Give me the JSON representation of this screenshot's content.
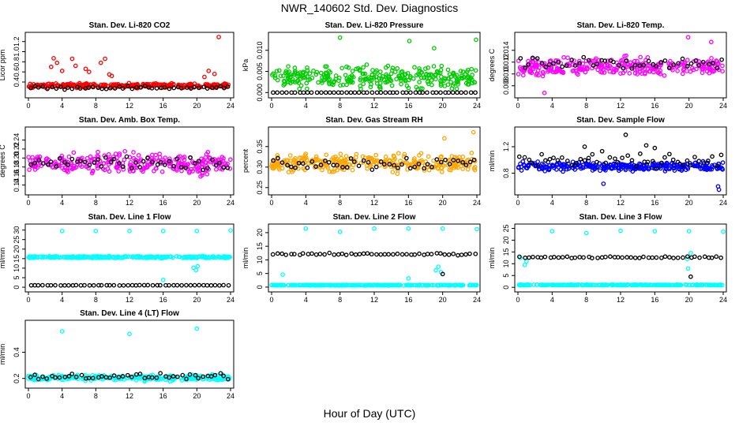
{
  "page": {
    "title": "NWR_140602  Std. Dev. Diagnostics",
    "xlabel": "Hour of Day (UTC)"
  },
  "chart_data": [
    {
      "type": "scatter",
      "title": "Stan. Dev. Li-820 CO2",
      "ylabel": "Licor ppm",
      "xlim": [
        0,
        24
      ],
      "ylim": [
        0.15,
        1.32
      ],
      "xticks": [
        "0",
        "4",
        "8",
        "12",
        "16",
        "20",
        "24"
      ],
      "yticks": [
        0.4,
        0.6,
        0.8,
        1.0,
        1.2
      ],
      "yticklabels": [
        "0.4",
        "0.6",
        "0.8",
        "1.0",
        "1.2"
      ],
      "series": [
        {
          "color": "#ff0000",
          "base": 0.33,
          "spread": 0.05,
          "x": [
            2.7,
            3.0,
            3.4,
            4.0,
            5.2,
            5.6,
            6.8,
            7.2,
            8.6,
            9.1,
            9.6,
            9.9,
            20.9,
            21.4,
            22.1,
            22.6
          ],
          "y": [
            0.7,
            0.87,
            0.78,
            0.62,
            0.86,
            0.72,
            0.66,
            0.6,
            0.78,
            0.86,
            0.55,
            0.52,
            0.5,
            0.62,
            0.56,
            1.29
          ]
        },
        {
          "color": "#000000",
          "base": 0.29,
          "spread": 0.04,
          "x": [],
          "y": []
        }
      ]
    },
    {
      "type": "scatter",
      "title": "Stan. Dev. Li-820 Pressure",
      "ylabel": "kPa",
      "xlim": [
        0,
        24
      ],
      "ylim": [
        -0.0005,
        0.0135
      ],
      "xticks": [
        "0",
        "4",
        "8",
        "12",
        "16",
        "20",
        "24"
      ],
      "yticks": [
        0.0,
        0.005,
        0.01
      ],
      "yticklabels": [
        "0.000",
        "0.005",
        "0.010"
      ],
      "series": [
        {
          "color": "#00cc00",
          "base": 0.0035,
          "spread": 0.003,
          "x": [
            8.0,
            16.1,
            19.0,
            23.9
          ],
          "y": [
            0.013,
            0.0122,
            0.0105,
            0.0125
          ]
        },
        {
          "color": "#000000",
          "base": 0.0,
          "spread": 0.0,
          "x": [],
          "y": []
        }
      ]
    },
    {
      "type": "scatter",
      "title": "Stan. Dev. Li-820 Temp.",
      "ylabel": "degrees C",
      "xlim": [
        0,
        24
      ],
      "ylim": [
        0.0065,
        0.0165
      ],
      "xticks": [
        "0",
        "4",
        "8",
        "12",
        "16",
        "20",
        "24"
      ],
      "yticks": [
        0.008,
        0.01,
        0.012,
        0.014
      ],
      "yticklabels": [
        "0.008",
        "0.010",
        "0.012",
        "0.014"
      ],
      "series": [
        {
          "color": "#ff00ff",
          "base": 0.0112,
          "spread": 0.0018,
          "x": [
            19.9,
            3.1,
            22.6
          ],
          "y": [
            0.0162,
            0.0068,
            0.0154
          ]
        },
        {
          "color": "#000000",
          "base": 0.0118,
          "spread": 0.0012,
          "x": [],
          "y": []
        }
      ]
    },
    {
      "type": "scatter",
      "title": "Stan. Dev. Amb. Box Temp.",
      "ylabel": "degrees C",
      "xlim": [
        0,
        24
      ],
      "ylim": [
        0.125,
        0.262
      ],
      "xticks": [
        "0",
        "4",
        "8",
        "12",
        "16",
        "20",
        "24"
      ],
      "yticks": [
        0.14,
        0.16,
        0.18,
        0.2,
        0.22,
        0.24
      ],
      "yticklabels": [
        "0.14",
        "0.16",
        "0.18",
        "0.20",
        "0.22",
        "0.24"
      ],
      "series": [
        {
          "color": "#ff00ff",
          "base": 0.188,
          "spread": 0.028,
          "x": [],
          "y": []
        },
        {
          "color": "#000000",
          "base": 0.19,
          "spread": 0.022,
          "x": [],
          "y": []
        }
      ]
    },
    {
      "type": "scatter",
      "title": "Stan. Dev. Gas Stream RH",
      "ylabel": "percent",
      "xlim": [
        0,
        24
      ],
      "ylim": [
        0.24,
        0.39
      ],
      "xticks": [
        "0",
        "4",
        "8",
        "12",
        "16",
        "20",
        "24"
      ],
      "yticks": [
        0.25,
        0.3,
        0.35
      ],
      "yticklabels": [
        "0.25",
        "0.30",
        "0.35"
      ],
      "series": [
        {
          "color": "#ffa500",
          "base": 0.31,
          "spread": 0.025,
          "x": [
            23.6,
            20.2
          ],
          "y": [
            0.385,
            0.37
          ]
        },
        {
          "color": "#000000",
          "base": 0.31,
          "spread": 0.02,
          "x": [],
          "y": []
        }
      ]
    },
    {
      "type": "scatter",
      "title": "Stan. Dev. Sample Flow",
      "ylabel": "ml/min",
      "xlim": [
        0,
        24
      ],
      "ylim": [
        0.52,
        1.45
      ],
      "xticks": [
        "0",
        "4",
        "8",
        "12",
        "16",
        "20",
        "24"
      ],
      "yticks": [
        0.8,
        1.2
      ],
      "yticklabels": [
        "0.8",
        "1.2"
      ],
      "series": [
        {
          "color": "#0000ff",
          "base": 0.9,
          "spread": 0.08,
          "x": [
            23.4,
            23.5,
            10.0
          ],
          "y": [
            0.6,
            0.55,
            0.64
          ]
        },
        {
          "color": "#000000",
          "base": 1.0,
          "spread": 0.14,
          "x": [
            12.6,
            15.0,
            16.0,
            7.8
          ],
          "y": [
            1.38,
            1.22,
            1.18,
            1.2
          ]
        }
      ]
    },
    {
      "type": "scatter",
      "title": "Stan. Dev. Line 1 Flow",
      "ylabel": "ml/min",
      "xlim": [
        0,
        24
      ],
      "ylim": [
        -0.8,
        31.5
      ],
      "xticks": [
        "0",
        "4",
        "8",
        "12",
        "16",
        "20",
        "24"
      ],
      "yticks": [
        0,
        5,
        10,
        15,
        20,
        25,
        30
      ],
      "yticklabels": [
        "0",
        "5",
        "10",
        "15",
        "20",
        "25",
        "30"
      ],
      "series": [
        {
          "color": "#00ffff",
          "base": 15.8,
          "spread": 0.6,
          "x": [
            4.0,
            8.0,
            12.0,
            16.0,
            20.0,
            24.0,
            16.0,
            19.6,
            19.9,
            20.1
          ],
          "y": [
            29.5,
            29.5,
            29.5,
            29.5,
            29.5,
            29.8,
            3.8,
            10.2,
            9.0,
            11.0
          ]
        },
        {
          "color": "#000000",
          "base": 1.0,
          "spread": 0.1,
          "x": [],
          "y": []
        }
      ]
    },
    {
      "type": "scatter",
      "title": "Stan. Dev. Line 2 Flow",
      "ylabel": "ml/min",
      "xlim": [
        0,
        24
      ],
      "ylim": [
        -0.6,
        22.0
      ],
      "xticks": [
        "0",
        "4",
        "8",
        "12",
        "16",
        "20",
        "24"
      ],
      "yticks": [
        0,
        5,
        10,
        15,
        20
      ],
      "yticklabels": [
        "0",
        "5",
        "10",
        "15",
        "20"
      ],
      "series": [
        {
          "color": "#00ffff",
          "base": 0.7,
          "spread": 0.15,
          "x": [
            4.0,
            8.0,
            12.0,
            16.0,
            20.0,
            24.0,
            1.3,
            16.0,
            19.2,
            19.5,
            19.8
          ],
          "y": [
            21.5,
            20.3,
            21.5,
            21.5,
            21.5,
            21.3,
            4.6,
            3.2,
            6.2,
            7.5,
            5.5
          ]
        },
        {
          "color": "#000000",
          "base": 12.1,
          "spread": 0.5,
          "x": [
            20.0
          ],
          "y": [
            4.8
          ]
        }
      ]
    },
    {
      "type": "scatter",
      "title": "Stan. Dev. Line 3 Flow",
      "ylabel": "ml/min",
      "xlim": [
        0,
        24
      ],
      "ylim": [
        -0.6,
        25.5
      ],
      "xticks": [
        "0",
        "4",
        "8",
        "12",
        "16",
        "20",
        "24"
      ],
      "yticks": [
        0,
        5,
        10,
        15,
        20,
        25
      ],
      "yticklabels": [
        "0",
        "5",
        "10",
        "15",
        "20",
        "25"
      ],
      "series": [
        {
          "color": "#00ffff",
          "base": 1.0,
          "spread": 0.15,
          "x": [
            4.0,
            8.0,
            12.0,
            16.0,
            20.0,
            24.0,
            0.3,
            0.8,
            1.0,
            19.8,
            19.9,
            20.2
          ],
          "y": [
            23.8,
            23.0,
            24.0,
            23.8,
            23.8,
            23.6,
            12.5,
            9.5,
            11.0,
            12.0,
            8.0,
            14.5
          ]
        },
        {
          "color": "#000000",
          "base": 12.7,
          "spread": 0.5,
          "x": [
            20.2
          ],
          "y": [
            4.5
          ]
        }
      ]
    },
    {
      "type": "scatter",
      "title": "Stan. Dev. Line 4 (LT) Flow",
      "ylabel": "ml/min",
      "xlim": [
        0,
        24
      ],
      "ylim": [
        0.15,
        0.62
      ],
      "xticks": [
        "0",
        "4",
        "8",
        "12",
        "16",
        "20",
        "24"
      ],
      "yticks": [
        0.2,
        0.4
      ],
      "yticklabels": [
        "0.2",
        "0.4"
      ],
      "series": [
        {
          "color": "#00ffff",
          "base": 0.205,
          "spread": 0.025,
          "x": [
            4.0,
            12.0,
            20.0
          ],
          "y": [
            0.56,
            0.54,
            0.58
          ]
        },
        {
          "color": "#000000",
          "base": 0.215,
          "spread": 0.025,
          "x": [],
          "y": []
        }
      ]
    }
  ]
}
